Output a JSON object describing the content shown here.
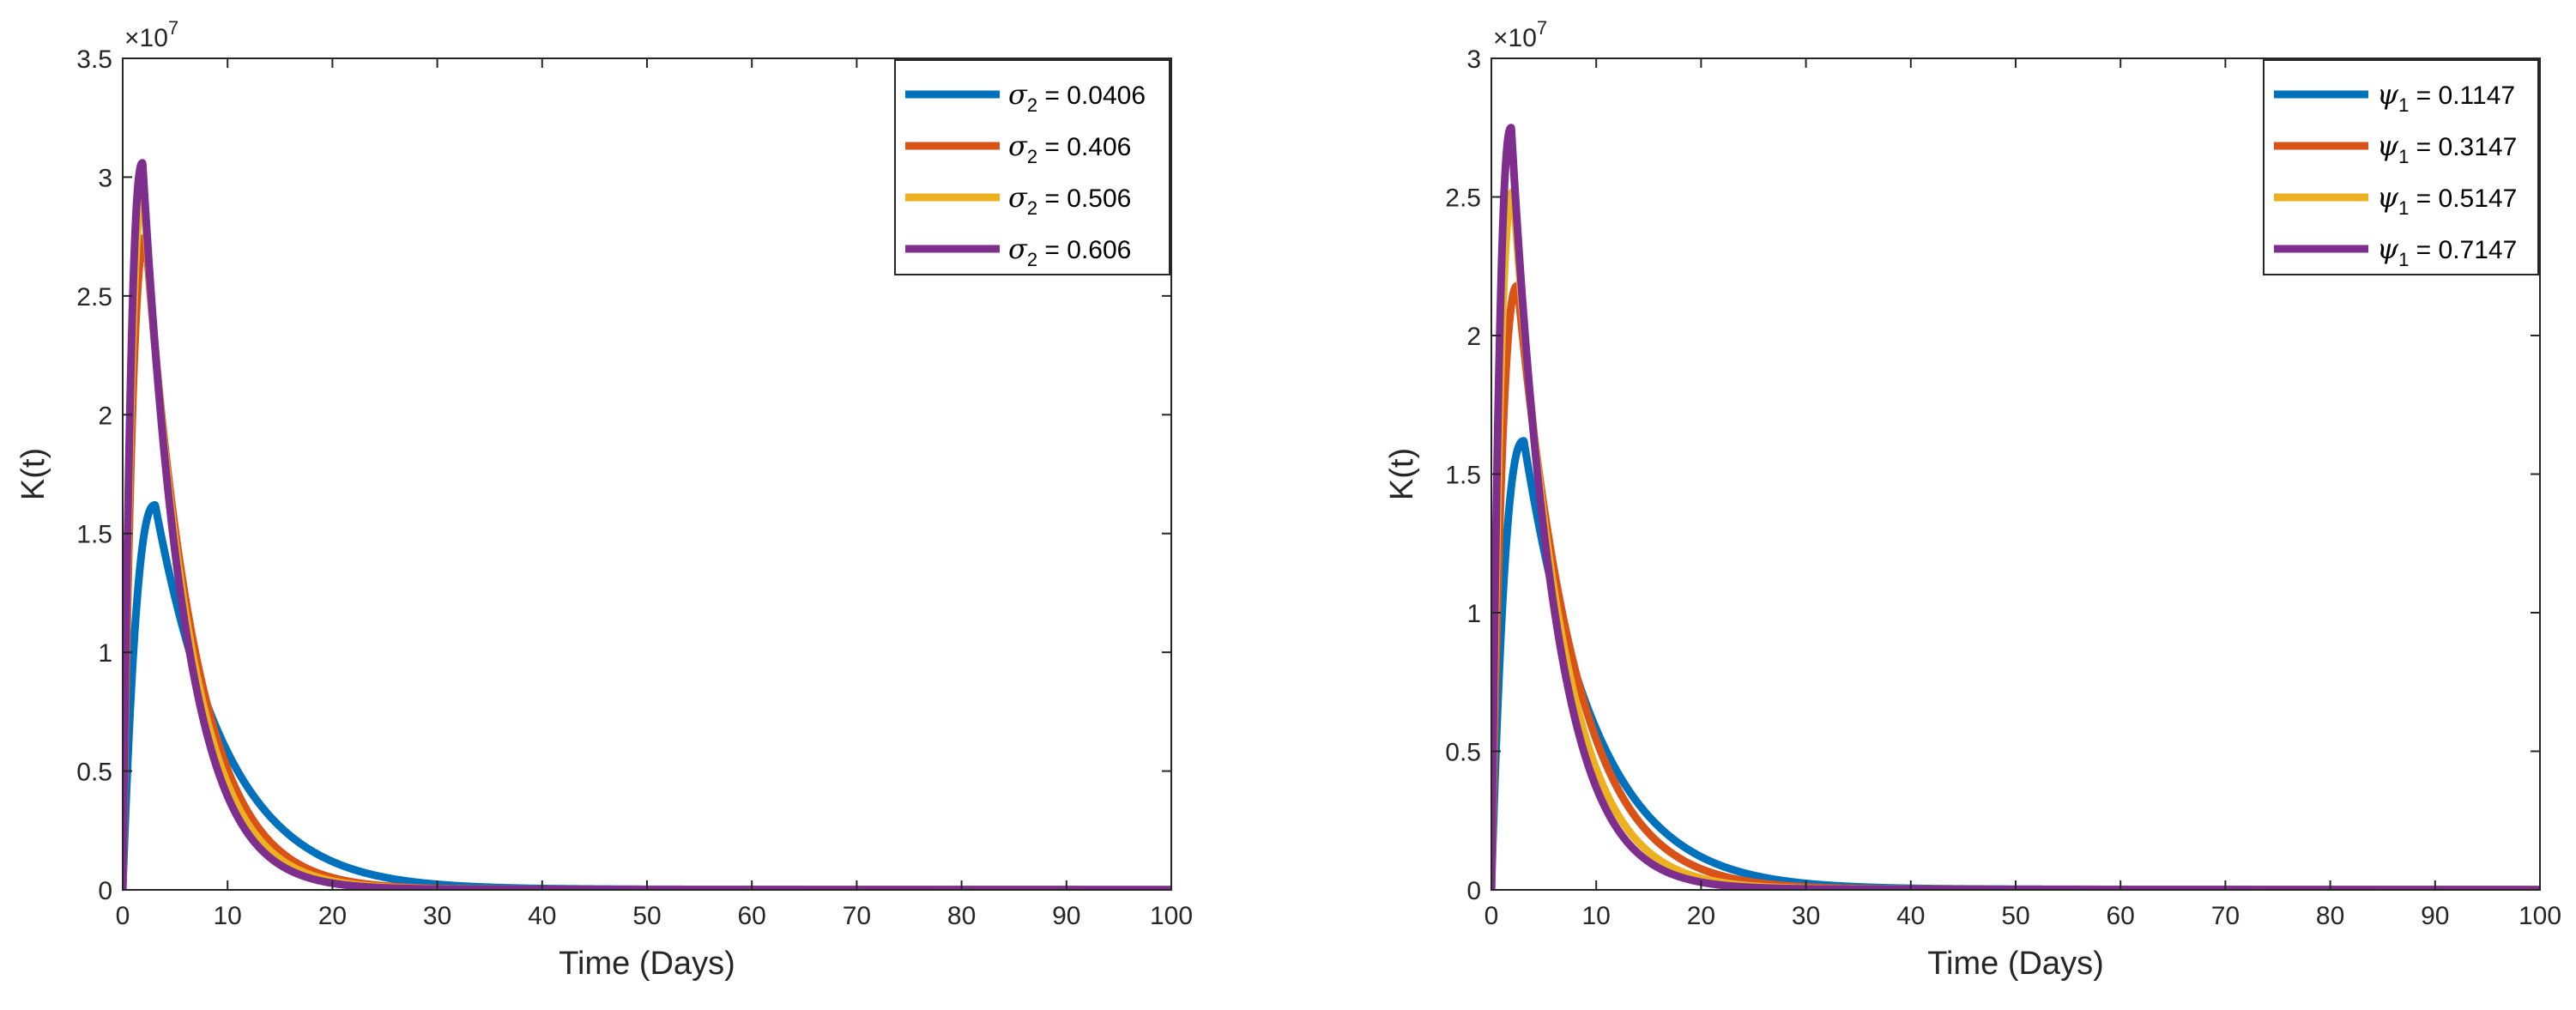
{
  "colors": {
    "blue": "#0072BD",
    "orange": "#D95319",
    "yellow": "#EDB120",
    "purple": "#7E2F8E",
    "axis": "#262626"
  },
  "chart_data": [
    {
      "type": "line",
      "xlabel": "Time (Days)",
      "ylabel": "K(t)",
      "xlim": [
        0,
        100
      ],
      "ylim": [
        0,
        3.5
      ],
      "xticks": [
        0,
        10,
        20,
        30,
        40,
        50,
        60,
        70,
        80,
        90,
        100
      ],
      "xtick_labels": [
        "0",
        "10",
        "20",
        "30",
        "40",
        "50",
        "60",
        "70",
        "80",
        "90",
        "100"
      ],
      "yticks": [
        0,
        0.5,
        1,
        1.5,
        2,
        2.5,
        3,
        3.5
      ],
      "ytick_labels": [
        "0",
        "0.5",
        "1",
        "1.5",
        "2",
        "2.5",
        "3",
        "3.5"
      ],
      "y_exponent": "×10",
      "y_exponent_power": "7",
      "legend_position": "top-right",
      "series": [
        {
          "name": "σ2 = 0.0406",
          "symbol": "σ",
          "sub": "2",
          "value": " = 0.0406",
          "color": "#0072BD",
          "peak": 1.62,
          "peak_t": 3.1,
          "decay": 0.145,
          "tail": 0.005
        },
        {
          "name": "σ2 = 0.406",
          "symbol": "σ",
          "sub": "2",
          "value": " = 0.406",
          "color": "#D95319",
          "peak": 2.75,
          "peak_t": 2.2,
          "decay": 0.21,
          "tail": 0.004
        },
        {
          "name": "σ2 = 0.506",
          "symbol": "σ",
          "sub": "2",
          "value": " = 0.506",
          "color": "#EDB120",
          "peak": 2.93,
          "peak_t": 2.0,
          "decay": 0.228,
          "tail": 0.004
        },
        {
          "name": "σ2 = 0.606",
          "symbol": "σ",
          "sub": "2",
          "value": " = 0.606",
          "color": "#7E2F8E",
          "peak": 3.06,
          "peak_t": 1.9,
          "decay": 0.245,
          "tail": 0.004
        }
      ]
    },
    {
      "type": "line",
      "xlabel": "Time (Days)",
      "ylabel": "K(t)",
      "xlim": [
        0,
        100
      ],
      "ylim": [
        0,
        3
      ],
      "xticks": [
        0,
        10,
        20,
        30,
        40,
        50,
        60,
        70,
        80,
        90,
        100
      ],
      "xtick_labels": [
        "0",
        "10",
        "20",
        "30",
        "40",
        "50",
        "60",
        "70",
        "80",
        "90",
        "100"
      ],
      "yticks": [
        0,
        0.5,
        1,
        1.5,
        2,
        2.5,
        3
      ],
      "ytick_labels": [
        "0",
        "0.5",
        "1",
        "1.5",
        "2",
        "2.5",
        "3"
      ],
      "y_exponent": "×10",
      "y_exponent_power": "7",
      "legend_position": "top-right",
      "series": [
        {
          "name": "ψ1 = 0.1147",
          "symbol": "ψ",
          "sub": "1",
          "value": " = 0.1147",
          "color": "#0072BD",
          "peak": 1.62,
          "peak_t": 3.1,
          "decay": 0.145,
          "tail": 0.005
        },
        {
          "name": "ψ1 = 0.3147",
          "symbol": "ψ",
          "sub": "1",
          "value": " = 0.3147",
          "color": "#D95319",
          "peak": 2.18,
          "peak_t": 2.5,
          "decay": 0.18,
          "tail": 0.004
        },
        {
          "name": "ψ1 = 0.5147",
          "symbol": "ψ",
          "sub": "1",
          "value": " = 0.5147",
          "color": "#EDB120",
          "peak": 2.52,
          "peak_t": 2.1,
          "decay": 0.215,
          "tail": 0.004
        },
        {
          "name": "ψ1 = 0.7147",
          "symbol": "ψ",
          "sub": "1",
          "value": " = 0.7147",
          "color": "#7E2F8E",
          "peak": 2.75,
          "peak_t": 1.9,
          "decay": 0.24,
          "tail": 0.004
        }
      ]
    }
  ]
}
